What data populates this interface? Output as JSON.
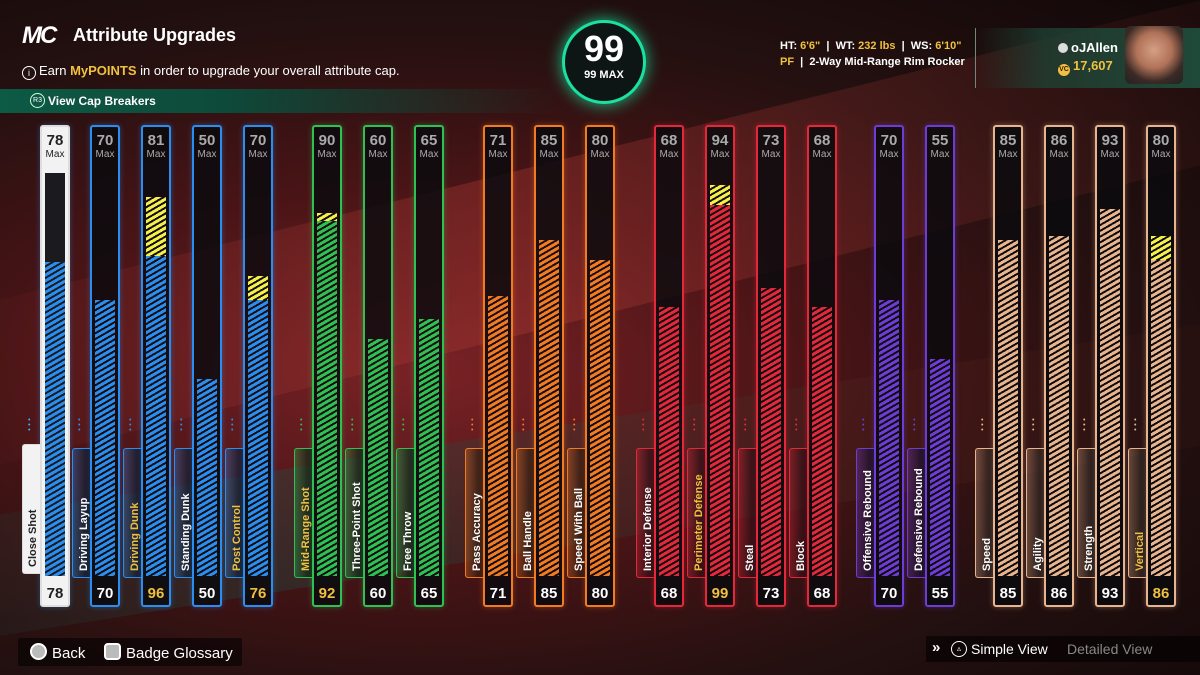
{
  "header": {
    "logo": "MC",
    "title": "Attribute Upgrades",
    "subtitle_pre": "Earn ",
    "subtitle_hl": "MyPOINTS",
    "subtitle_post": " in order to upgrade your overall attribute cap.",
    "cap_breakers_label": "View Cap Breakers",
    "cap_breakers_button": "R3"
  },
  "overall": {
    "value": "99",
    "max_label": "99 MAX"
  },
  "player": {
    "ht_label": "HT:",
    "ht": "6'6\"",
    "wt_label": "WT:",
    "wt": "232 lbs",
    "ws_label": "WS:",
    "ws": "6'10\"",
    "position": "PF",
    "archetype": "2-Way Mid-Range Rim Rocker",
    "username": "oJAllen",
    "vc": "17,607",
    "vc_icon": "VC"
  },
  "max_label": "Max",
  "attributes": [
    {
      "name": "Close Shot",
      "max": "78",
      "current": "78",
      "fill": 78,
      "boost": 0,
      "group": "white"
    },
    {
      "name": "Driving Layup",
      "max": "70",
      "current": "70",
      "fill": 70,
      "boost": 0,
      "group": "blue"
    },
    {
      "name": "Driving Dunk",
      "max": "81",
      "current": "96",
      "fill": 81,
      "boost": 15,
      "group": "blue",
      "highlight": true
    },
    {
      "name": "Standing Dunk",
      "max": "50",
      "current": "50",
      "fill": 50,
      "boost": 0,
      "group": "blue"
    },
    {
      "name": "Post Control",
      "max": "70",
      "current": "76",
      "fill": 70,
      "boost": 6,
      "group": "blue",
      "highlight": true
    },
    {
      "name": "Mid-Range Shot",
      "max": "90",
      "current": "92",
      "fill": 90,
      "boost": 2,
      "group": "green",
      "highlight": true
    },
    {
      "name": "Three-Point Shot",
      "max": "60",
      "current": "60",
      "fill": 60,
      "boost": 0,
      "group": "green"
    },
    {
      "name": "Free Throw",
      "max": "65",
      "current": "65",
      "fill": 65,
      "boost": 0,
      "group": "green"
    },
    {
      "name": "Pass Accuracy",
      "max": "71",
      "current": "71",
      "fill": 71,
      "boost": 0,
      "group": "orange"
    },
    {
      "name": "Ball Handle",
      "max": "85",
      "current": "85",
      "fill": 85,
      "boost": 0,
      "group": "orange"
    },
    {
      "name": "Speed With Ball",
      "max": "80",
      "current": "80",
      "fill": 80,
      "boost": 0,
      "group": "orange"
    },
    {
      "name": "Interior Defense",
      "max": "68",
      "current": "68",
      "fill": 68,
      "boost": 0,
      "group": "red"
    },
    {
      "name": "Perimeter Defense",
      "max": "94",
      "current": "99",
      "fill": 94,
      "boost": 5,
      "group": "red",
      "highlight": true
    },
    {
      "name": "Steal",
      "max": "73",
      "current": "73",
      "fill": 73,
      "boost": 0,
      "group": "red"
    },
    {
      "name": "Block",
      "max": "68",
      "current": "68",
      "fill": 68,
      "boost": 0,
      "group": "red"
    },
    {
      "name": "Offensive Rebound",
      "max": "70",
      "current": "70",
      "fill": 70,
      "boost": 0,
      "group": "purple"
    },
    {
      "name": "Defensive Rebound",
      "max": "55",
      "current": "55",
      "fill": 55,
      "boost": 0,
      "group": "purple"
    },
    {
      "name": "Speed",
      "max": "85",
      "current": "85",
      "fill": 85,
      "boost": 0,
      "group": "tan"
    },
    {
      "name": "Agility",
      "max": "86",
      "current": "86",
      "fill": 86,
      "boost": 0,
      "group": "tan"
    },
    {
      "name": "Strength",
      "max": "93",
      "current": "93",
      "fill": 93,
      "boost": 0,
      "group": "tan"
    },
    {
      "name": "Vertical",
      "max": "80",
      "current": "86",
      "fill": 80,
      "boost": 6,
      "group": "tan",
      "highlight": true
    }
  ],
  "colors": {
    "blue": "#2a8ef0",
    "green": "#2ec052",
    "orange": "#f07b22",
    "red": "#e4283c",
    "purple": "#6c3cd4",
    "tan": "#e8b48e",
    "white": "#2a8ef0",
    "highlight": "#f0c040",
    "accent": "#1be0a0"
  },
  "footer": {
    "back": "Back",
    "glossary": "Badge Glossary",
    "simple_view": "Simple View",
    "detailed_view": "Detailed View"
  }
}
